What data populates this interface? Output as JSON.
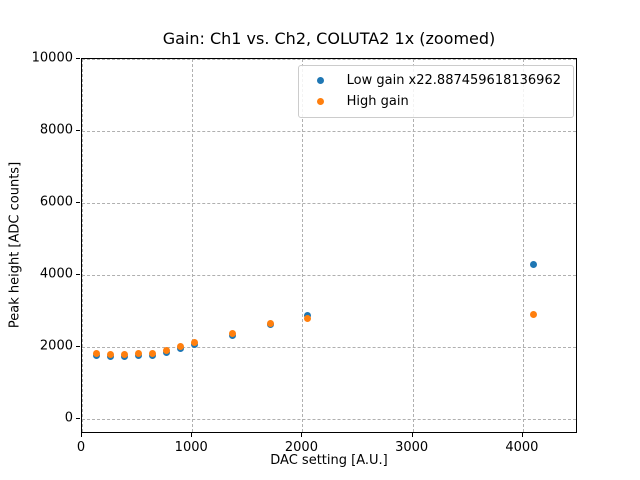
{
  "chart_data": {
    "type": "scatter",
    "title": "Gain: Ch1 vs. Ch2, COLUTA2 1x (zoomed)",
    "xlabel": "DAC setting [A.U.]",
    "ylabel": "Peak height [ADC counts]",
    "xlim": [
      0,
      4500
    ],
    "ylim": [
      -420,
      10000
    ],
    "xticks": [
      0,
      1000,
      2000,
      3000,
      4000
    ],
    "yticks": [
      0,
      2000,
      4000,
      6000,
      8000,
      10000
    ],
    "grid": true,
    "grid_style": "dashed",
    "grid_color": "#b0b0b0",
    "legend_position": "upper right",
    "x": [
      128,
      256,
      384,
      512,
      640,
      768,
      896,
      1024,
      1365,
      1707,
      2048,
      4096
    ],
    "series": [
      {
        "name": "Low gain x22.887459618136962",
        "color": "#1f77b4",
        "values": [
          1750,
          1740,
          1740,
          1755,
          1760,
          1845,
          1960,
          2065,
          2310,
          2620,
          2870,
          4280
        ]
      },
      {
        "name": "High gain",
        "color": "#ff7f0e",
        "values": [
          1815,
          1800,
          1800,
          1815,
          1820,
          1895,
          2020,
          2120,
          2380,
          2660,
          2790,
          2910
        ]
      }
    ]
  }
}
